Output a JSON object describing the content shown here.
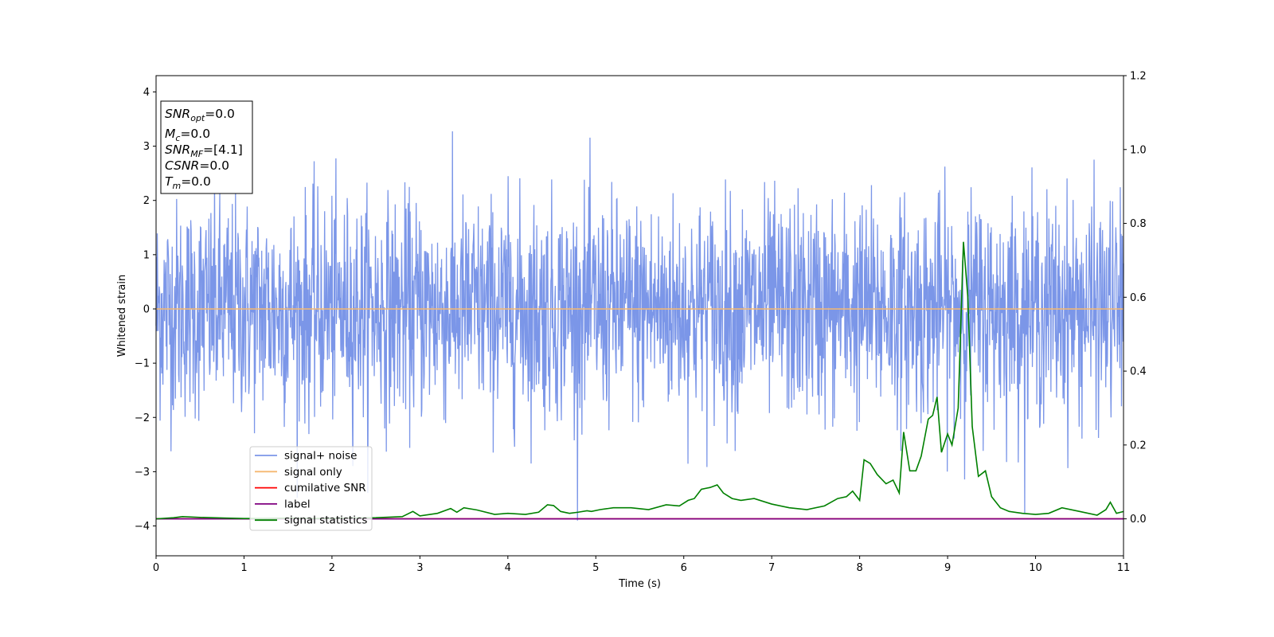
{
  "chart_data": {
    "type": "line",
    "title": "",
    "xlabel": "Time (s)",
    "ylabel": "Whitened strain",
    "xlim": [
      0,
      11
    ],
    "ylim": [
      -4.55,
      4.3
    ],
    "y2lim": [
      -0.1,
      1.2
    ],
    "xticks": [
      "0",
      "1",
      "2",
      "3",
      "4",
      "5",
      "6",
      "7",
      "8",
      "9",
      "10",
      "11"
    ],
    "yticks": [
      "4",
      "3",
      "2",
      "1",
      "0",
      "−1",
      "−2",
      "−3",
      "−4"
    ],
    "y2ticks": [
      "1.2",
      "1.0",
      "0.8",
      "0.6",
      "0.4",
      "0.2",
      "0.0"
    ],
    "grid": false,
    "legend_position": "lower-left",
    "noise": {
      "amplitude_sigma": 1.0,
      "max": 3.65,
      "min": -3.9
    },
    "series": [
      {
        "name": "signal+ noise",
        "color": "#7b96e8",
        "axis": "left",
        "kind": "whitened-noise"
      },
      {
        "name": "signal only",
        "color": "#f5b870",
        "axis": "left",
        "constant": 0.0
      },
      {
        "name": "cumilative SNR",
        "color": "#ff0000",
        "axis": "right",
        "constant": 0.0
      },
      {
        "name": "label",
        "color": "#800080",
        "axis": "right",
        "constant": 0.0
      },
      {
        "name": "signal statistics",
        "color": "#008000",
        "axis": "right",
        "x": [
          0,
          0.2,
          0.3,
          0.5,
          0.8,
          1.0,
          1.2,
          1.5,
          1.8,
          2.0,
          2.2,
          2.5,
          2.8,
          2.92,
          3.0,
          3.2,
          3.35,
          3.42,
          3.5,
          3.65,
          3.85,
          4.0,
          4.2,
          4.35,
          4.45,
          4.52,
          4.6,
          4.7,
          4.8,
          4.9,
          4.95,
          5.05,
          5.2,
          5.4,
          5.6,
          5.8,
          5.95,
          6.05,
          6.12,
          6.2,
          6.3,
          6.38,
          6.45,
          6.55,
          6.65,
          6.8,
          7.0,
          7.2,
          7.4,
          7.6,
          7.75,
          7.85,
          7.92,
          8.0,
          8.05,
          8.12,
          8.2,
          8.3,
          8.38,
          8.45,
          8.5,
          8.57,
          8.64,
          8.7,
          8.78,
          8.83,
          8.88,
          8.93,
          9.0,
          9.05,
          9.12,
          9.18,
          9.23,
          9.28,
          9.35,
          9.43,
          9.5,
          9.6,
          9.7,
          9.85,
          10.0,
          10.15,
          10.3,
          10.5,
          10.7,
          10.8,
          10.85,
          10.92,
          11.0
        ],
        "values": [
          0.0,
          0.003,
          0.006,
          0.004,
          0.002,
          0.001,
          0.001,
          0.002,
          0.001,
          0.001,
          0.002,
          0.003,
          0.006,
          0.02,
          0.008,
          0.015,
          0.028,
          0.018,
          0.03,
          0.024,
          0.012,
          0.015,
          0.012,
          0.018,
          0.038,
          0.036,
          0.02,
          0.015,
          0.018,
          0.022,
          0.02,
          0.025,
          0.03,
          0.03,
          0.025,
          0.038,
          0.035,
          0.05,
          0.055,
          0.08,
          0.085,
          0.092,
          0.07,
          0.055,
          0.05,
          0.055,
          0.04,
          0.03,
          0.025,
          0.035,
          0.055,
          0.06,
          0.075,
          0.05,
          0.16,
          0.15,
          0.12,
          0.095,
          0.105,
          0.07,
          0.235,
          0.13,
          0.13,
          0.17,
          0.27,
          0.28,
          0.33,
          0.18,
          0.23,
          0.2,
          0.3,
          0.75,
          0.6,
          0.25,
          0.115,
          0.13,
          0.06,
          0.03,
          0.02,
          0.015,
          0.012,
          0.015,
          0.03,
          0.02,
          0.01,
          0.025,
          0.045,
          0.015,
          0.02
        ]
      }
    ]
  },
  "info_box": {
    "lines": [
      {
        "sym": "SNR",
        "sub": "opt",
        "val": "=0.0"
      },
      {
        "sym": "M",
        "sub": "c",
        "val": "=0.0"
      },
      {
        "sym": "SNR",
        "sub": "MF",
        "val": "=[4.1]"
      },
      {
        "sym": "CSNR",
        "sub": "",
        "val": "=0.0"
      },
      {
        "sym": "T",
        "sub": "m",
        "val": "=0.0"
      }
    ]
  }
}
